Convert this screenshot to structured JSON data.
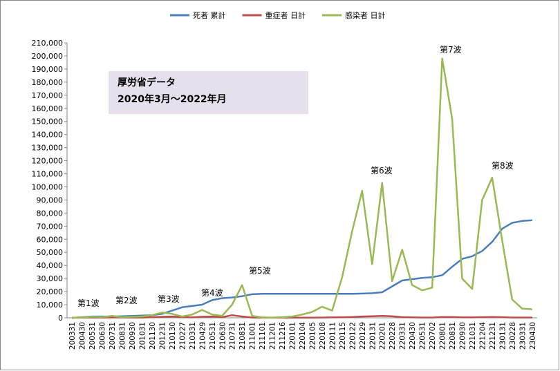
{
  "chart_data": {
    "type": "line",
    "categories": [
      "200331",
      "200430",
      "200531",
      "200630",
      "200731",
      "200831",
      "200930",
      "201031",
      "201130",
      "201231",
      "210130",
      "210227",
      "210331",
      "210429",
      "210531",
      "210630",
      "210731",
      "210831",
      "211001",
      "211101",
      "211201",
      "211216",
      "220101",
      "220104",
      "220105",
      "220108",
      "220111",
      "220115",
      "220122",
      "220129",
      "220131",
      "220201",
      "220228",
      "220331",
      "220430",
      "220531",
      "220702",
      "220801",
      "220831",
      "220930",
      "221031",
      "221204",
      "221231",
      "230131",
      "230228",
      "230331",
      "230430"
    ],
    "series": [
      {
        "name": "死者 累計",
        "color": "#4a7ebb",
        "values": [
          0,
          500,
          1000,
          1000,
          1000,
          1200,
          1500,
          1700,
          2000,
          3000,
          5500,
          8000,
          9000,
          10000,
          13500,
          15000,
          15500,
          16500,
          18000,
          18300,
          18300,
          18300,
          18300,
          18300,
          18300,
          18300,
          18300,
          18300,
          18300,
          18500,
          18800,
          19500,
          24000,
          28500,
          29500,
          30500,
          31000,
          32500,
          39000,
          45000,
          47000,
          51000,
          58000,
          68000,
          72500,
          74000,
          74500
        ]
      },
      {
        "name": "重症者 日計",
        "color": "#be4b48",
        "values": [
          0,
          100,
          200,
          100,
          300,
          200,
          200,
          200,
          500,
          800,
          1000,
          500,
          300,
          800,
          1000,
          500,
          2000,
          1000,
          200,
          100,
          100,
          100,
          100,
          100,
          100,
          200,
          300,
          400,
          600,
          1000,
          1200,
          1500,
          1200,
          500,
          300,
          200,
          200,
          600,
          600,
          300,
          300,
          500,
          600,
          500,
          200,
          200,
          200
        ]
      },
      {
        "name": "感染者 日計",
        "color": "#98b954",
        "values": [
          0,
          300,
          800,
          500,
          1500,
          500,
          800,
          1000,
          2000,
          4000,
          3000,
          1000,
          2500,
          6000,
          2500,
          1500,
          10000,
          25000,
          1500,
          300,
          200,
          500,
          1000,
          2500,
          4500,
          8500,
          5500,
          31000,
          66000,
          97000,
          41000,
          103000,
          28000,
          52000,
          25000,
          21000,
          23000,
          198000,
          152000,
          30000,
          22000,
          90000,
          107000,
          59000,
          14000,
          7000,
          6500
        ]
      }
    ],
    "ylim": [
      0,
      210000
    ],
    "yticks": [
      0,
      {
        "value": 10000,
        "label": "10,000"
      },
      {
        "value": 20000,
        "label": "20,000"
      },
      {
        "value": 30000,
        "label": "30,000"
      },
      {
        "value": 40000,
        "label": "40,000"
      },
      {
        "value": 50000,
        "label": "50,000"
      },
      {
        "value": 60000,
        "label": "60,000"
      },
      {
        "value": 70000,
        "label": "70,000"
      },
      {
        "value": 80000,
        "label": "80,000"
      },
      {
        "value": 90000,
        "label": "90,000"
      },
      {
        "value": 100000,
        "label": "100,000"
      },
      {
        "value": 110000,
        "label": "110,000"
      },
      {
        "value": 120000,
        "label": "120,000"
      },
      {
        "value": 130000,
        "label": "130,000"
      },
      {
        "value": 140000,
        "label": "140,000"
      },
      {
        "value": 150000,
        "label": "150,000"
      },
      {
        "value": 160000,
        "label": "160,000"
      },
      {
        "value": 170000,
        "label": "170,000"
      },
      {
        "value": 180000,
        "label": "180,000"
      },
      {
        "value": 190000,
        "label": "190,000"
      },
      {
        "value": 200000,
        "label": "200,000"
      },
      {
        "value": 210000,
        "label": "210,000"
      }
    ],
    "grid": false,
    "legend": "top",
    "note_lines": [
      "厚労省データ",
      "2020年3月～2022年月"
    ],
    "annotations": [
      "第1波",
      "第2波",
      "第3波",
      "第4波",
      "第5波",
      "第6波",
      "第7波",
      "第8波"
    ]
  }
}
